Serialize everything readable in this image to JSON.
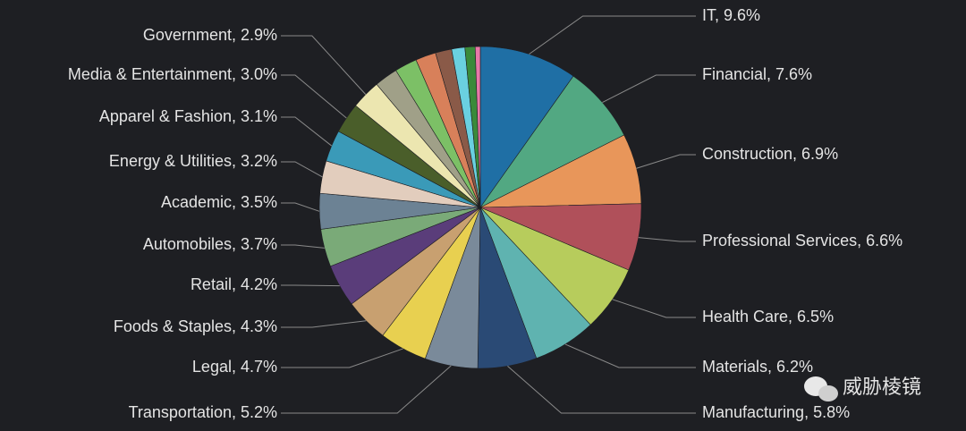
{
  "chart_data": {
    "type": "pie",
    "values": [
      9.6,
      7.6,
      6.9,
      6.6,
      6.5,
      6.2,
      5.8,
      5.2,
      4.7,
      4.3,
      4.2,
      3.7,
      3.5,
      3.2,
      3.1,
      3.0,
      2.9,
      2.3,
      2.2,
      2.0,
      1.6,
      1.3,
      1.0,
      0.5
    ],
    "value_labels": [
      "IT, 9.6%",
      "Financial, 7.6%",
      "Construction, 6.9%",
      "Professional Services, 6.6%",
      "Health Care, 6.5%",
      "Materials, 6.2%",
      "Manufacturing, 5.8%",
      "Transportation, 5.2%",
      "Legal, 4.7%",
      "Foods & Staples, 4.3%",
      "Retail, 4.2%",
      "Automobiles, 3.7%",
      "Academic, 3.5%",
      "Energy & Utilities, 3.2%",
      "Apparel & Fashion, 3.1%",
      "Media & Entertainment, 3.0%",
      "Government, 2.9%",
      null,
      null,
      null,
      null,
      null,
      null,
      null
    ],
    "colors": [
      "#1f6fa5",
      "#52a882",
      "#e8965a",
      "#b0505a",
      "#b7cc5c",
      "#5fb3b0",
      "#2a4a75",
      "#7a8a9a",
      "#e8d050",
      "#c8a070",
      "#5a3d7a",
      "#7aaa78",
      "#6c8294",
      "#e2cdbd",
      "#3a9ab8",
      "#4a5e2a",
      "#ece6b0",
      "#a0a088",
      "#7cc066",
      "#d8805a",
      "#8a5a48",
      "#6ad0e0",
      "#3a8a3a",
      "#e878a8"
    ]
  },
  "watermark": "威胁棱镜"
}
